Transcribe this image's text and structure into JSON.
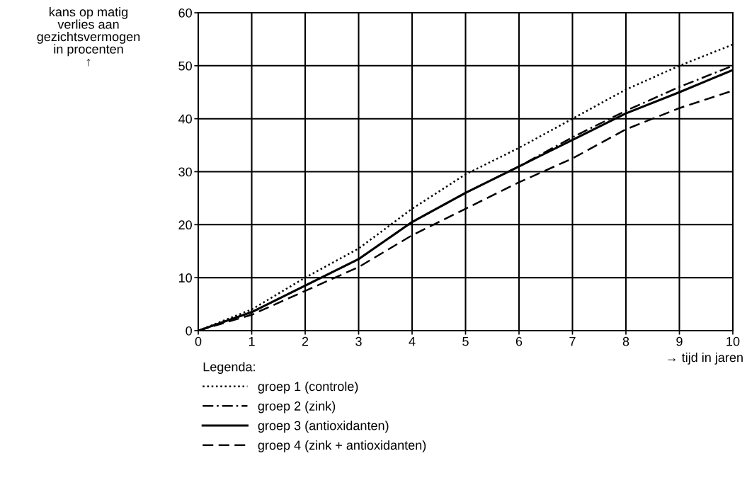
{
  "chart_data": {
    "type": "line",
    "xlabel": "→ tijd in jaren",
    "ylabel": "kans op matig\nverlies aan\ngezichtsvermogen\nin procenten\n↑",
    "legend_title": "Legenda:",
    "x": [
      0,
      1,
      2,
      3,
      4,
      5,
      6,
      7,
      8,
      9,
      10
    ],
    "series": [
      {
        "name": "groep 1 (controle)",
        "color": "#000000",
        "line_style": "dotted",
        "values": [
          0,
          4,
          10,
          15.5,
          23,
          29.5,
          34.5,
          40,
          45.5,
          50,
          54
        ]
      },
      {
        "name": "groep 2 (zink)",
        "color": "#000000",
        "line_style": "dashdot",
        "values": [
          0,
          3.5,
          8.5,
          13.5,
          20.5,
          26,
          31,
          36.5,
          41.5,
          46,
          50
        ]
      },
      {
        "name": "groep 3 (antioxidanten)",
        "color": "#000000",
        "line_style": "solid",
        "values": [
          0,
          3.5,
          8.5,
          13.5,
          20.5,
          26,
          31,
          36,
          41,
          45,
          49.2
        ]
      },
      {
        "name": "groep 4 (zink + antioxidanten)",
        "color": "#000000",
        "line_style": "dashed",
        "values": [
          0,
          3,
          7.5,
          12,
          18,
          23,
          28,
          32.5,
          38,
          42,
          45.3
        ]
      }
    ],
    "xlim": [
      0,
      10
    ],
    "xticks": [
      0,
      1,
      2,
      3,
      4,
      5,
      6,
      7,
      8,
      9,
      10
    ],
    "ylim": [
      0,
      60
    ],
    "yticks": [
      0,
      10,
      20,
      30,
      40,
      50,
      60
    ],
    "grid": true,
    "legend": "bottom left",
    "marker": "none"
  }
}
